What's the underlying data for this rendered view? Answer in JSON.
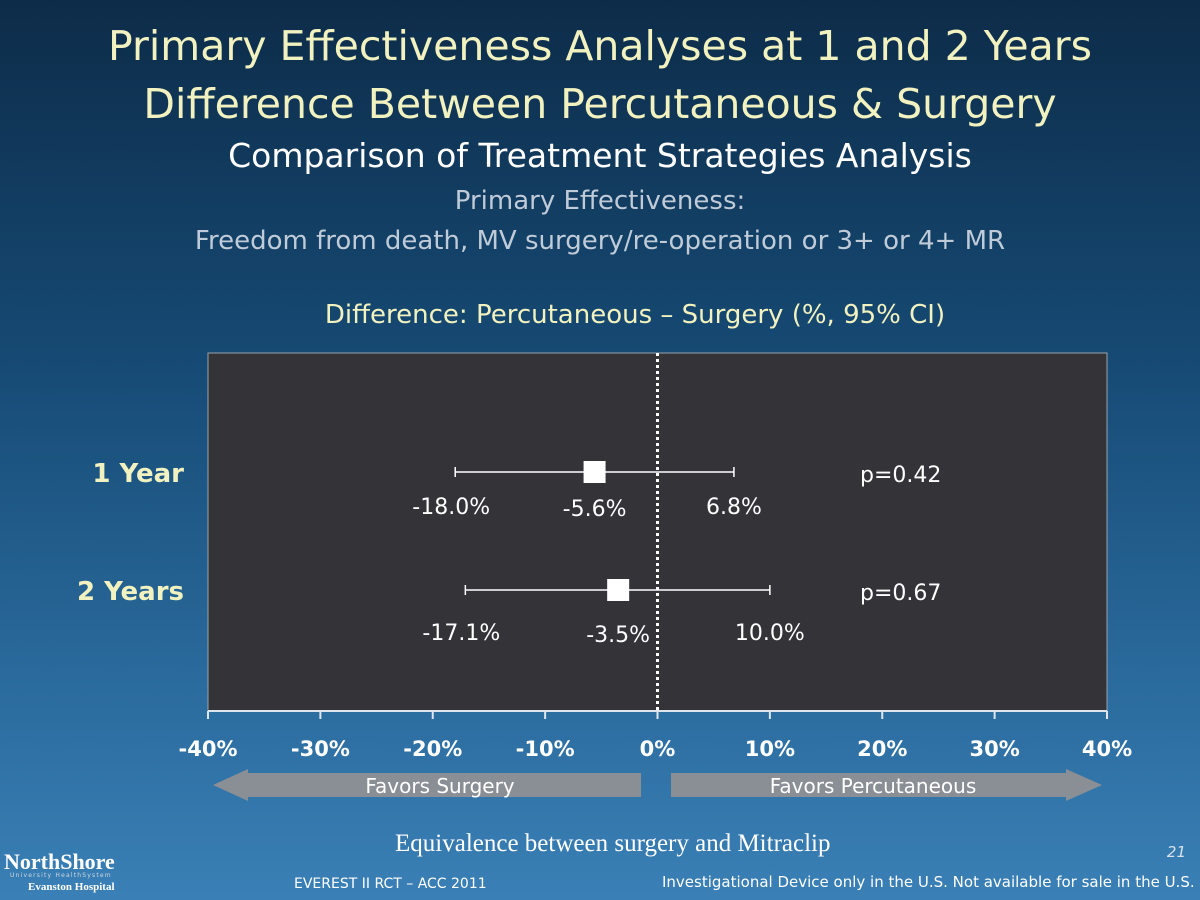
{
  "slide": {
    "title_line1": "Primary Effectiveness Analyses at 1 and 2 Years",
    "title_line2": "Difference Between Percutaneous & Surgery",
    "subtitle": "Comparison of Treatment Strategies Analysis",
    "primary_effectiveness_label": "Primary Effectiveness:",
    "primary_effectiveness_definition": "Freedom from death, MV surgery/re-operation or 3+ or 4+ MR",
    "caption": "Equivalence between surgery and Mitraclip",
    "slide_number": "21",
    "footer_left": "EVEREST II RCT – ACC 2011",
    "footer_right": "Investigational Device only in the U.S. Not available for sale in the U.S.",
    "logo": {
      "name": "NorthShore",
      "tagline": "University HealthSystem",
      "hospital": "Evanston Hospital"
    }
  },
  "chart_data": {
    "type": "forest",
    "title": "Difference: Percutaneous – Surgery (%, 95% CI)",
    "xlim": [
      -40,
      40
    ],
    "x_ticks": [
      -40,
      -30,
      -20,
      -10,
      0,
      10,
      20,
      30,
      40
    ],
    "x_tick_labels": [
      "-40%",
      "-30%",
      "-20%",
      "-10%",
      "0%",
      "10%",
      "20%",
      "30%",
      "40%"
    ],
    "reference_line": 0,
    "rows": [
      {
        "label": "1 Year",
        "estimate": -5.6,
        "lower": -18.0,
        "upper": 6.8,
        "estimate_label": "-5.6%",
        "lower_label": "-18.0%",
        "upper_label": "6.8%",
        "p_value": "p=0.42"
      },
      {
        "label": "2 Years",
        "estimate": -3.5,
        "lower": -17.1,
        "upper": 10.0,
        "estimate_label": "-3.5%",
        "lower_label": "-17.1%",
        "upper_label": "10.0%",
        "p_value": "p=0.67"
      }
    ],
    "favors_left": "Favors Surgery",
    "favors_right": "Favors Percutaneous",
    "colors": {
      "panel": "#333338",
      "title": "#f1f2c0",
      "marker": "#ffffff",
      "arrow": "#8a8f96"
    }
  }
}
